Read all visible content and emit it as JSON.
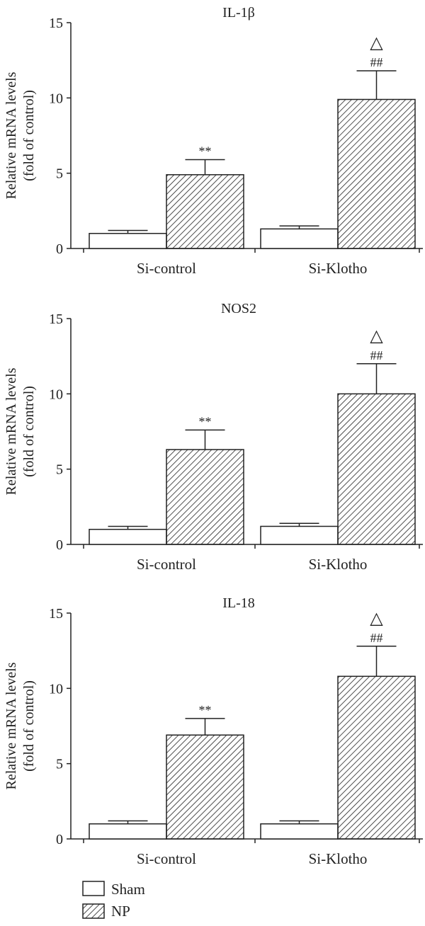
{
  "chart_data": [
    {
      "type": "bar",
      "title": "IL-1β",
      "ylabel": "Relative mRNA levels",
      "ylabel2": "(fold of control)",
      "ylim": [
        0,
        15
      ],
      "yticks": [
        "0",
        "5",
        "10",
        "15"
      ],
      "categories": [
        "Si-control",
        "Si-Klotho"
      ],
      "series": [
        {
          "name": "Sham",
          "values": [
            1.0,
            1.3
          ],
          "errors": [
            0.2,
            0.2
          ]
        },
        {
          "name": "NP",
          "values": [
            4.9,
            9.9
          ],
          "errors": [
            1.0,
            1.9
          ]
        }
      ],
      "annotations": [
        {
          "series": 1,
          "category": 0,
          "marks": [
            "**"
          ]
        },
        {
          "series": 1,
          "category": 1,
          "marks": [
            "##",
            "△"
          ]
        }
      ]
    },
    {
      "type": "bar",
      "title": "NOS2",
      "ylabel": "Relative mRNA levels",
      "ylabel2": "(fold of control)",
      "ylim": [
        0,
        15
      ],
      "yticks": [
        "0",
        "5",
        "10",
        "15"
      ],
      "categories": [
        "Si-control",
        "Si-Klotho"
      ],
      "series": [
        {
          "name": "Sham",
          "values": [
            1.0,
            1.2
          ],
          "errors": [
            0.2,
            0.2
          ]
        },
        {
          "name": "NP",
          "values": [
            6.3,
            10.0
          ],
          "errors": [
            1.3,
            2.0
          ]
        }
      ],
      "annotations": [
        {
          "series": 1,
          "category": 0,
          "marks": [
            "**"
          ]
        },
        {
          "series": 1,
          "category": 1,
          "marks": [
            "##",
            "△"
          ]
        }
      ]
    },
    {
      "type": "bar",
      "title": "IL-18",
      "ylabel": "Relative mRNA levels",
      "ylabel2": "(fold of control)",
      "ylim": [
        0,
        15
      ],
      "yticks": [
        "0",
        "5",
        "10",
        "15"
      ],
      "categories": [
        "Si-control",
        "Si-Klotho"
      ],
      "series": [
        {
          "name": "Sham",
          "values": [
            1.0,
            1.0
          ],
          "errors": [
            0.2,
            0.2
          ]
        },
        {
          "name": "NP",
          "values": [
            6.9,
            10.8
          ],
          "errors": [
            1.1,
            2.0
          ]
        }
      ],
      "annotations": [
        {
          "series": 1,
          "category": 0,
          "marks": [
            "**"
          ]
        },
        {
          "series": 1,
          "category": 1,
          "marks": [
            "##",
            "△"
          ]
        }
      ]
    }
  ],
  "legend": [
    {
      "label": "Sham",
      "pattern": "open"
    },
    {
      "label": "NP",
      "pattern": "hatched"
    }
  ],
  "colors": {
    "stroke": "#222222",
    "fill": "#ffffff"
  }
}
